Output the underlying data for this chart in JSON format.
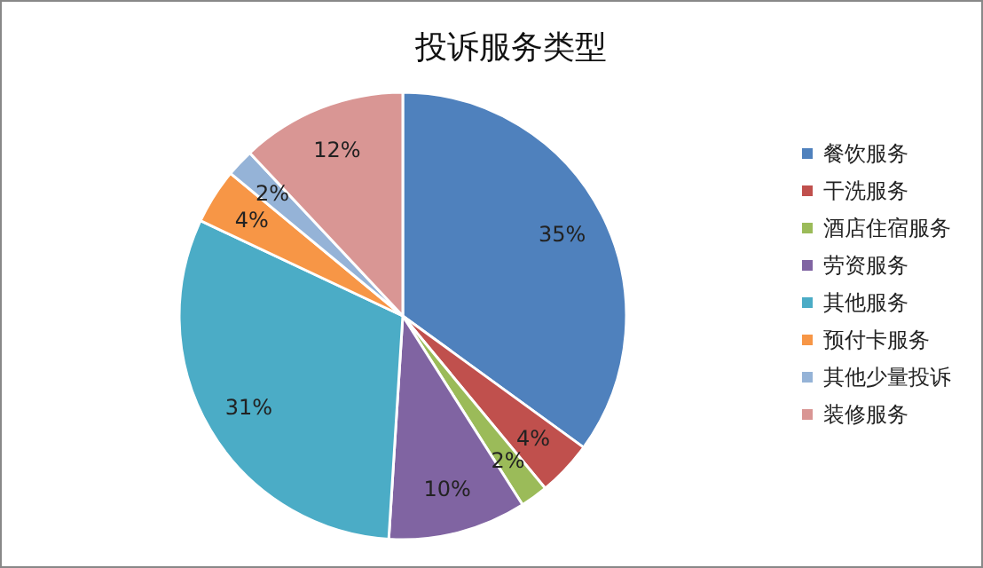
{
  "chart_data": {
    "type": "pie",
    "title": "投诉服务类型",
    "categories": [
      "餐饮服务",
      "干洗服务",
      "酒店住宿服务",
      "劳资服务",
      "其他服务",
      "预付卡服务",
      "其他少量投诉",
      "装修服务"
    ],
    "values": [
      35,
      4,
      2,
      10,
      31,
      4,
      2,
      12
    ],
    "colors": [
      "#4f81bd",
      "#c0504d",
      "#9bbb59",
      "#8064a2",
      "#4bacc6",
      "#f79646",
      "#95b3d7",
      "#d99694"
    ],
    "value_labels": [
      "35%",
      "4%",
      "2%",
      "10%",
      "31%",
      "4%",
      "2%",
      "12%"
    ],
    "legend": "right"
  }
}
